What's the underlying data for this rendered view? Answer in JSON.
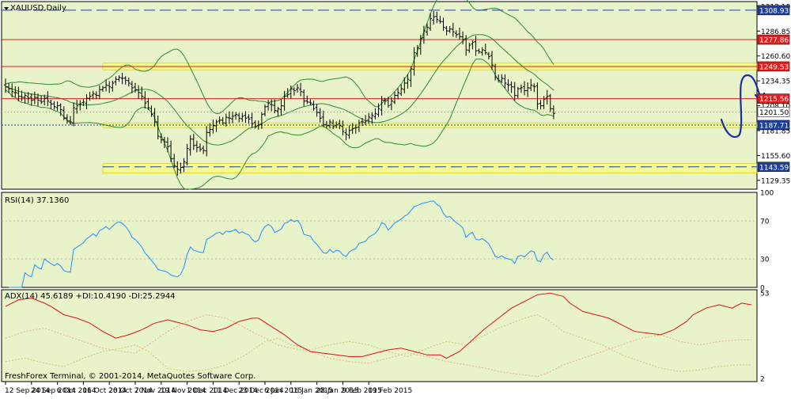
{
  "colors": {
    "panel_bg": "#e8f3c9",
    "axis_bg": "#ffffff",
    "border": "#000000",
    "bollinger": "#2e8b2e",
    "resistance": "#e02020",
    "support_dashed": "#1f3f9f",
    "support_dotted": "#1f3f9f",
    "zone_highlight": "#ffff66",
    "rsi_line": "#1e90ff",
    "adx_line": "#e01010",
    "di_plus": "#c8c870",
    "di_minus": "#e8b090",
    "annotation": "#1a2fa0",
    "candle": "#000000"
  },
  "chart_data": [
    {
      "type": "candlestick",
      "title": "XAUUSD,Daily",
      "ylim": [
        1120,
        1318
      ],
      "y_ticks": [
        {
          "value": 1313.1,
          "label": "1313.10"
        },
        {
          "value": 1286.85,
          "label": "1286.85"
        },
        {
          "value": 1260.6,
          "label": "1260.60"
        },
        {
          "value": 1234.35,
          "label": "1234.35"
        },
        {
          "value": 1208.1,
          "label": "1208.10"
        },
        {
          "value": 1181.85,
          "label": "1181.85"
        },
        {
          "value": 1155.6,
          "label": "1155.60"
        },
        {
          "value": 1129.35,
          "label": "1129.35"
        }
      ],
      "levels": [
        {
          "value": 1308.93,
          "label": "1308.93",
          "style": "dashed-blue"
        },
        {
          "value": 1277.86,
          "label": "1277.86",
          "style": "solid-red"
        },
        {
          "value": 1249.53,
          "label": "1249.53",
          "style": "solid-red"
        },
        {
          "value": 1215.56,
          "label": "1215.56",
          "style": "solid-red"
        },
        {
          "value": 1201.5,
          "label": "1201.50",
          "style": "current-price"
        },
        {
          "value": 1187.71,
          "label": "1187.71",
          "style": "dotted-blue"
        },
        {
          "value": 1143.59,
          "label": "1143.59",
          "style": "dashed-blue"
        }
      ],
      "zones": [
        {
          "from": 1246,
          "to": 1253
        },
        {
          "from": 1185,
          "to": 1190
        },
        {
          "from": 1137,
          "to": 1147
        }
      ],
      "annotation": "blue hand-drawn curve projecting a dip then a rise",
      "closes": [
        1228,
        1226,
        1223,
        1222,
        1218,
        1217,
        1219,
        1216,
        1214,
        1217,
        1214,
        1212,
        1216,
        1213,
        1210,
        1207,
        1208,
        1204,
        1195,
        1192,
        1191,
        1206,
        1208,
        1210,
        1212,
        1216,
        1218,
        1221,
        1219,
        1225,
        1227,
        1230,
        1228,
        1232,
        1236,
        1238,
        1237,
        1235,
        1232,
        1227,
        1225,
        1222,
        1218,
        1211,
        1206,
        1199,
        1191,
        1176,
        1172,
        1170,
        1165,
        1152,
        1145,
        1141,
        1143,
        1149,
        1163,
        1173,
        1166,
        1164,
        1162,
        1161,
        1180,
        1183,
        1187,
        1191,
        1193,
        1190,
        1196,
        1195,
        1197,
        1199,
        1195,
        1197,
        1195,
        1194,
        1189,
        1186,
        1188,
        1199,
        1207,
        1211,
        1209,
        1203,
        1205,
        1208,
        1218,
        1220,
        1226,
        1224,
        1227,
        1223,
        1213,
        1212,
        1211,
        1205,
        1201,
        1195,
        1188,
        1187,
        1191,
        1186,
        1188,
        1187,
        1181,
        1178,
        1182,
        1184,
        1185,
        1190,
        1191,
        1192,
        1196,
        1198,
        1200,
        1205,
        1214,
        1213,
        1208,
        1213,
        1219,
        1222,
        1226,
        1232,
        1236,
        1247,
        1264,
        1269,
        1279,
        1287,
        1291,
        1300,
        1302,
        1299,
        1297,
        1291,
        1287,
        1289,
        1286,
        1283,
        1281,
        1278,
        1267,
        1272,
        1275,
        1266,
        1265,
        1267,
        1264,
        1260,
        1251,
        1238,
        1235,
        1237,
        1232,
        1230,
        1228,
        1219,
        1226,
        1227,
        1224,
        1227,
        1230,
        1228,
        1210,
        1208,
        1215,
        1218,
        1205,
        1200
      ]
    },
    {
      "type": "line",
      "title": "RSI(14) 37.1360",
      "ylim": [
        0,
        100
      ],
      "y_ticks": [
        {
          "value": 100,
          "label": "100"
        },
        {
          "value": 70,
          "label": "70"
        },
        {
          "value": 30,
          "label": "30"
        },
        {
          "value": 0,
          "label": "0"
        }
      ]
    },
    {
      "type": "line",
      "title": "ADX(14) 45.6189 +DI:10.4190 -DI:25.2944",
      "ylim": [
        0,
        55
      ],
      "y_ticks": [
        {
          "value": 53,
          "label": "53"
        },
        {
          "value": 2,
          "label": "2"
        }
      ],
      "footer": "FreshForex Terminal, © 2001-2014, MetaQuotes Software Corp.",
      "adx_points": [
        [
          0,
          45
        ],
        [
          4,
          49
        ],
        [
          8,
          50
        ],
        [
          12,
          47
        ],
        [
          14,
          45
        ],
        [
          18,
          40
        ],
        [
          22,
          38
        ],
        [
          26,
          35
        ],
        [
          30,
          30
        ],
        [
          34,
          26
        ],
        [
          38,
          28
        ],
        [
          42,
          31
        ],
        [
          46,
          35
        ],
        [
          50,
          37
        ],
        [
          52,
          36
        ],
        [
          56,
          34
        ],
        [
          60,
          31
        ],
        [
          64,
          30
        ],
        [
          68,
          32
        ],
        [
          72,
          36
        ],
        [
          76,
          38
        ],
        [
          78,
          38
        ],
        [
          82,
          33
        ],
        [
          86,
          28
        ],
        [
          90,
          22
        ],
        [
          94,
          18
        ],
        [
          98,
          17
        ],
        [
          102,
          16
        ],
        [
          106,
          15
        ],
        [
          110,
          15
        ],
        [
          114,
          17
        ],
        [
          118,
          19
        ],
        [
          122,
          20
        ],
        [
          126,
          18
        ],
        [
          130,
          16
        ],
        [
          134,
          16
        ],
        [
          136,
          14
        ],
        [
          140,
          18
        ],
        [
          144,
          25
        ],
        [
          148,
          32
        ],
        [
          152,
          38
        ],
        [
          156,
          44
        ],
        [
          160,
          48
        ],
        [
          164,
          52
        ],
        [
          168,
          53
        ],
        [
          172,
          51
        ],
        [
          174,
          47
        ],
        [
          178,
          42
        ],
        [
          182,
          40
        ],
        [
          186,
          38
        ],
        [
          190,
          34
        ],
        [
          194,
          30
        ],
        [
          198,
          29
        ],
        [
          202,
          28
        ],
        [
          206,
          31
        ],
        [
          210,
          36
        ],
        [
          212,
          40
        ],
        [
          216,
          44
        ],
        [
          220,
          46
        ],
        [
          224,
          44
        ],
        [
          227,
          47
        ],
        [
          230,
          46
        ]
      ],
      "di_plus_points": [
        [
          0,
          12
        ],
        [
          6,
          14
        ],
        [
          12,
          11
        ],
        [
          18,
          9
        ],
        [
          24,
          14
        ],
        [
          30,
          18
        ],
        [
          36,
          20
        ],
        [
          40,
          22
        ],
        [
          44,
          18
        ],
        [
          50,
          8
        ],
        [
          56,
          6
        ],
        [
          62,
          7
        ],
        [
          68,
          10
        ],
        [
          74,
          16
        ],
        [
          80,
          24
        ],
        [
          84,
          26
        ],
        [
          88,
          22
        ],
        [
          94,
          19
        ],
        [
          100,
          22
        ],
        [
          106,
          24
        ],
        [
          112,
          22
        ],
        [
          118,
          18
        ],
        [
          124,
          15
        ],
        [
          130,
          20
        ],
        [
          136,
          24
        ],
        [
          142,
          22
        ],
        [
          148,
          28
        ],
        [
          152,
          32
        ],
        [
          156,
          35
        ],
        [
          160,
          38
        ],
        [
          164,
          40
        ],
        [
          168,
          36
        ],
        [
          172,
          30
        ],
        [
          178,
          26
        ],
        [
          184,
          22
        ],
        [
          190,
          16
        ],
        [
          196,
          12
        ],
        [
          202,
          8
        ],
        [
          208,
          6
        ],
        [
          214,
          7
        ],
        [
          220,
          9
        ],
        [
          226,
          10
        ],
        [
          230,
          10
        ]
      ],
      "di_minus_points": [
        [
          0,
          26
        ],
        [
          6,
          30
        ],
        [
          12,
          32
        ],
        [
          18,
          28
        ],
        [
          24,
          24
        ],
        [
          30,
          20
        ],
        [
          36,
          18
        ],
        [
          40,
          17
        ],
        [
          44,
          22
        ],
        [
          50,
          30
        ],
        [
          56,
          36
        ],
        [
          62,
          40
        ],
        [
          68,
          38
        ],
        [
          74,
          32
        ],
        [
          80,
          26
        ],
        [
          84,
          22
        ],
        [
          88,
          20
        ],
        [
          94,
          18
        ],
        [
          100,
          14
        ],
        [
          106,
          12
        ],
        [
          112,
          11
        ],
        [
          118,
          14
        ],
        [
          124,
          17
        ],
        [
          130,
          15
        ],
        [
          136,
          12
        ],
        [
          142,
          10
        ],
        [
          148,
          8
        ],
        [
          152,
          6
        ],
        [
          156,
          5
        ],
        [
          160,
          4
        ],
        [
          164,
          3
        ],
        [
          168,
          6
        ],
        [
          172,
          10
        ],
        [
          178,
          14
        ],
        [
          184,
          18
        ],
        [
          190,
          22
        ],
        [
          196,
          26
        ],
        [
          202,
          28
        ],
        [
          208,
          24
        ],
        [
          214,
          22
        ],
        [
          220,
          24
        ],
        [
          226,
          25
        ],
        [
          230,
          25
        ]
      ]
    }
  ],
  "x_axis": {
    "labels": [
      "12 Sep 2014",
      "24 Sep 2014",
      "6 Oct 2014",
      "16 Oct 2014",
      "28 Oct 2014",
      "7 Nov 2014",
      "19 Nov 2014",
      "1 Dec 2014",
      "11 Dec 2014",
      "23 Dec 2014",
      "6 Jan 2015",
      "16 Jan 2015",
      "28 Jan 2015",
      "9 Feb 2015",
      "19 Feb 2015"
    ],
    "label_index": [
      0,
      8,
      16,
      24,
      32,
      40,
      48,
      56,
      64,
      72,
      80,
      88,
      96,
      104,
      112
    ]
  }
}
